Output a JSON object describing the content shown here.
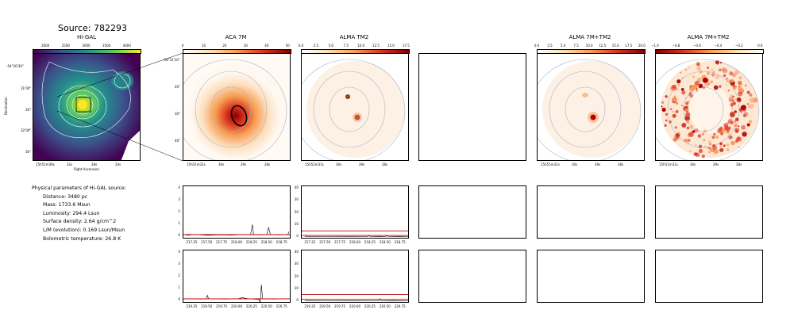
{
  "source_title": "Source: 782293",
  "panels": {
    "higal": {
      "title": "Hi-GAL",
      "cbar_ticks": [
        "2000",
        "2500",
        "3000",
        "3500",
        "4000"
      ],
      "x_ticks": [
        "15h51m36s",
        "32s",
        "28s",
        "24s"
      ],
      "y_ticks": [
        "-54°30'30\"",
        "31'00\"",
        "30\"",
        "32'00\"",
        "30\""
      ],
      "xlabel": "Right Ascension",
      "ylabel": "Declination"
    },
    "aca7m": {
      "title": "ACA 7M",
      "cbar_ticks": [
        "0",
        "10",
        "20",
        "30",
        "40",
        "50"
      ],
      "x_ticks": [
        "15h51m31s",
        "30s",
        "29s",
        "28s"
      ],
      "y_ticks": [
        "-54°31'10\"",
        "20\"",
        "30\"",
        "40\""
      ]
    },
    "almatm2": {
      "title": "ALMA TM2",
      "cbar_ticks": [
        "0.0",
        "2.5",
        "5.0",
        "7.5",
        "10.0",
        "12.5",
        "15.0",
        "17.5"
      ],
      "x_ticks": [
        "15h51m31s",
        "30s",
        "29s",
        "28s"
      ]
    },
    "alma7mtm2": {
      "title": "ALMA 7M+TM2",
      "cbar_ticks": [
        "0.0",
        "2.5",
        "5.0",
        "7.5",
        "10.0",
        "12.5",
        "15.0",
        "17.5",
        "20.0"
      ],
      "x_ticks": [
        "15h51m31s",
        "30s",
        "29s",
        "28s"
      ]
    },
    "alma7mtm2_b": {
      "title": "ALMA 7M+TM2",
      "cbar_ticks": [
        "−1.0",
        "−0.8",
        "−0.6",
        "−0.4",
        "−0.2",
        "0.0"
      ],
      "x_ticks": [
        "15h51m31s",
        "30s",
        "29s",
        "28s"
      ]
    }
  },
  "params": {
    "heading": "Physical parameters of Hi-GAL source:",
    "lines": [
      "Distance: 3480 pc",
      "Mass: 1733.6 Msun",
      "Luminosity: 294.4 Lsun",
      "Surface density: 2.64 g/cm^2",
      "L/M (evolution): 0.169 Lsun/Msun",
      "Bolometric temperature: 26.8 K"
    ]
  },
  "chart_data": [
    {
      "type": "line",
      "panel": "aca7m_spec_1",
      "x_ticks": [
        "217.25",
        "217.50",
        "217.75",
        "218.00",
        "218.25",
        "218.50",
        "218.75"
      ],
      "y_ticks": [
        "0",
        "1",
        "2",
        "3",
        "4"
      ],
      "xlim": [
        217.1,
        218.9
      ],
      "ylim": [
        -0.3,
        4.2
      ],
      "series": [
        {
          "color": "#000000",
          "x": [
            217.15,
            217.3,
            217.5,
            217.7,
            217.9,
            218.1,
            218.22,
            218.25,
            218.27,
            218.4,
            218.49,
            218.52,
            218.55,
            218.7,
            218.84,
            218.86
          ],
          "y": [
            0.05,
            0.1,
            0.05,
            0.08,
            0.06,
            0.1,
            0.1,
            0.95,
            0.1,
            0.08,
            0.1,
            0.7,
            0.1,
            0.08,
            0.1,
            0.35
          ]
        },
        {
          "color": "#c00000",
          "x": [
            217.1,
            218.9
          ],
          "y": [
            0.1,
            0.1
          ]
        }
      ]
    },
    {
      "type": "line",
      "panel": "almatm2_spec_1",
      "x_ticks": [
        "217.25",
        "217.50",
        "217.75",
        "218.00",
        "218.25",
        "218.50",
        "218.75"
      ],
      "y_ticks": [
        "0",
        "10",
        "20",
        "30",
        "40"
      ],
      "xlim": [
        217.1,
        218.9
      ],
      "ylim": [
        -2,
        42
      ],
      "series": [
        {
          "color": "#000000",
          "x": [
            217.15,
            217.5,
            217.9,
            218.2,
            218.22,
            218.24,
            218.4,
            218.5,
            218.52,
            218.54,
            218.7,
            218.88
          ],
          "y": [
            0.5,
            0.3,
            0.4,
            0.3,
            1.5,
            0.3,
            0.4,
            0.3,
            1.2,
            0.3,
            0.4,
            0.3
          ]
        },
        {
          "color": "#c00000",
          "x": [
            217.1,
            218.9
          ],
          "y": [
            5.0,
            5.0
          ]
        },
        {
          "color": "#c00000",
          "x": [
            217.1,
            218.9
          ],
          "y": [
            1.2,
            1.2
          ]
        }
      ]
    },
    {
      "type": "line",
      "panel": "aca7m_spec_2",
      "x_ticks": [
        "219.25",
        "219.50",
        "219.75",
        "220.00",
        "220.25",
        "220.50",
        "220.75"
      ],
      "y_ticks": [
        "0",
        "1",
        "2",
        "3",
        "4"
      ],
      "xlim": [
        219.1,
        220.9
      ],
      "ylim": [
        -0.3,
        4.2
      ],
      "series": [
        {
          "color": "#000000",
          "x": [
            219.15,
            219.4,
            219.48,
            219.5,
            219.52,
            219.8,
            220.0,
            220.08,
            220.2,
            220.36,
            220.38,
            220.4,
            220.42,
            220.6,
            220.85
          ],
          "y": [
            0.1,
            0.08,
            0.1,
            0.4,
            0.1,
            0.08,
            0.1,
            0.2,
            0.1,
            0.05,
            -0.2,
            1.3,
            0.1,
            0.08,
            0.1
          ]
        },
        {
          "color": "#c00000",
          "x": [
            219.1,
            220.9
          ],
          "y": [
            0.1,
            0.1
          ]
        }
      ]
    },
    {
      "type": "line",
      "panel": "almatm2_spec_2",
      "x_ticks": [
        "219.25",
        "219.50",
        "219.75",
        "220.00",
        "220.25",
        "220.50",
        "220.75"
      ],
      "y_ticks": [
        "0",
        "10",
        "20",
        "30",
        "40"
      ],
      "xlim": [
        219.1,
        220.9
      ],
      "ylim": [
        -2,
        42
      ],
      "series": [
        {
          "color": "#000000",
          "x": [
            219.15,
            219.5,
            219.9,
            220.3,
            220.38,
            220.4,
            220.42,
            220.6,
            220.88
          ],
          "y": [
            0.5,
            0.3,
            0.4,
            0.3,
            0.3,
            2.0,
            0.3,
            0.4,
            0.3
          ]
        },
        {
          "color": "#c00000",
          "x": [
            219.1,
            220.9
          ],
          "y": [
            5.5,
            5.5
          ]
        },
        {
          "color": "#c00000",
          "x": [
            219.1,
            220.9
          ],
          "y": [
            1.5,
            1.5
          ]
        }
      ]
    }
  ]
}
